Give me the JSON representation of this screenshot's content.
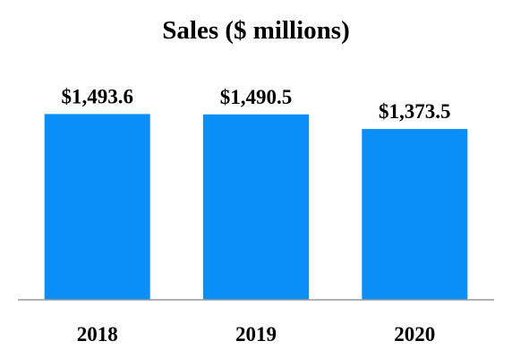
{
  "chart_data": {
    "type": "bar",
    "title": "Sales ($ millions)",
    "xlabel": "",
    "ylabel": "",
    "categories": [
      "2018",
      "2019",
      "2020"
    ],
    "values": [
      1493.6,
      1490.5,
      1373.5
    ],
    "data_labels": [
      "$1,493.6",
      "$1,490.5",
      "$1,373.5"
    ],
    "bar_color": "#0a8ef8",
    "axis_color": "#9a9a9a",
    "ylim": [
      0,
      1700
    ],
    "grid": false,
    "legend": "none"
  }
}
